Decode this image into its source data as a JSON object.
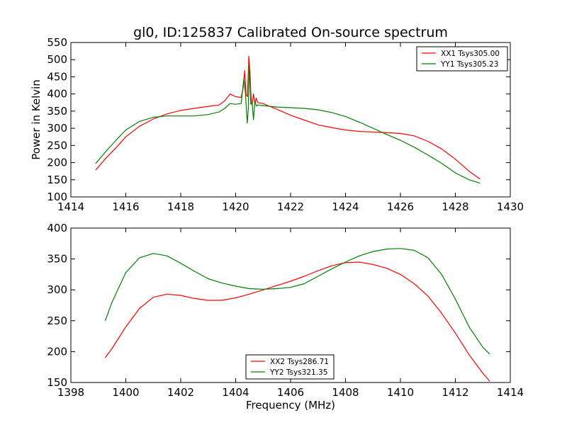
{
  "figure_title": "gl0, ID:125837 Calibrated On-source spectrum",
  "chart_data": [
    {
      "type": "line",
      "title": "gl0, ID:125837 Calibrated On-source spectrum",
      "xlabel": "",
      "ylabel": "Power in Kelvin",
      "xlim": [
        1414,
        1430
      ],
      "ylim": [
        100,
        550
      ],
      "xticks": [
        1414,
        1416,
        1418,
        1420,
        1422,
        1424,
        1426,
        1428,
        1430
      ],
      "yticks": [
        100,
        150,
        200,
        250,
        300,
        350,
        400,
        450,
        500,
        550
      ],
      "grid": false,
      "legend_position": "top-right",
      "series": [
        {
          "name": "XX1 Tsys305.00",
          "color": "#ff0000",
          "x": [
            1414.9,
            1415.3,
            1415.7,
            1416.0,
            1416.5,
            1417.0,
            1417.5,
            1418.0,
            1418.5,
            1419.0,
            1419.4,
            1419.6,
            1419.8,
            1420.0,
            1420.2,
            1420.28,
            1420.33,
            1420.38,
            1420.43,
            1420.48,
            1420.52,
            1420.56,
            1420.6,
            1420.65,
            1420.7,
            1420.75,
            1420.8,
            1421.0,
            1421.3,
            1421.6,
            1422.0,
            1422.5,
            1423.0,
            1423.5,
            1424.0,
            1424.5,
            1425.0,
            1425.5,
            1426.0,
            1426.5,
            1427.0,
            1427.5,
            1428.0,
            1428.5,
            1428.9
          ],
          "y": [
            178,
            215,
            248,
            275,
            306,
            327,
            342,
            352,
            358,
            364,
            368,
            380,
            400,
            392,
            390,
            420,
            468,
            398,
            392,
            510,
            470,
            390,
            368,
            400,
            372,
            388,
            375,
            372,
            362,
            352,
            338,
            324,
            310,
            302,
            295,
            291,
            289,
            287,
            285,
            278,
            262,
            240,
            210,
            175,
            152
          ]
        },
        {
          "name": "YY1 Tsys305.23",
          "color": "#008000",
          "x": [
            1414.9,
            1415.3,
            1415.7,
            1416.0,
            1416.5,
            1417.0,
            1417.5,
            1418.0,
            1418.5,
            1419.0,
            1419.4,
            1419.6,
            1419.8,
            1420.0,
            1420.2,
            1420.3,
            1420.36,
            1420.42,
            1420.46,
            1420.5,
            1420.55,
            1420.6,
            1420.65,
            1420.7,
            1420.75,
            1420.8,
            1421.0,
            1421.5,
            1422.0,
            1422.5,
            1423.0,
            1423.5,
            1424.0,
            1424.5,
            1425.0,
            1425.5,
            1426.0,
            1426.5,
            1427.0,
            1427.5,
            1428.0,
            1428.5,
            1428.9
          ],
          "y": [
            197,
            235,
            270,
            295,
            320,
            332,
            336,
            336,
            336,
            340,
            348,
            358,
            372,
            370,
            372,
            445,
            400,
            315,
            355,
            485,
            370,
            375,
            325,
            380,
            365,
            368,
            366,
            362,
            360,
            358,
            354,
            346,
            334,
            318,
            300,
            282,
            265,
            245,
            222,
            198,
            170,
            150,
            140
          ]
        }
      ]
    },
    {
      "type": "line",
      "title": "",
      "xlabel": "Frequency (MHz)",
      "ylabel": "",
      "xlim": [
        1398,
        1414
      ],
      "ylim": [
        150,
        400
      ],
      "xticks": [
        1398,
        1400,
        1402,
        1404,
        1406,
        1408,
        1410,
        1412,
        1414
      ],
      "yticks": [
        150,
        200,
        250,
        300,
        350,
        400
      ],
      "grid": false,
      "legend_position": "bottom-center",
      "series": [
        {
          "name": "XX2 Tsys286.71",
          "color": "#ff0000",
          "x": [
            1399.25,
            1399.5,
            1400.0,
            1400.5,
            1401.0,
            1401.5,
            1402.0,
            1402.5,
            1403.0,
            1403.5,
            1404.0,
            1404.5,
            1405.0,
            1405.5,
            1406.0,
            1406.5,
            1407.0,
            1407.5,
            1408.0,
            1408.5,
            1409.0,
            1409.5,
            1410.0,
            1410.5,
            1411.0,
            1411.5,
            1412.0,
            1412.5,
            1413.0,
            1413.25
          ],
          "y": [
            190,
            205,
            240,
            270,
            288,
            293,
            291,
            286,
            283,
            283,
            287,
            293,
            300,
            307,
            314,
            322,
            331,
            339,
            344,
            345,
            341,
            335,
            325,
            310,
            290,
            262,
            230,
            195,
            165,
            152
          ]
        },
        {
          "name": "YY2 Tsys321.35",
          "color": "#008000",
          "x": [
            1399.25,
            1399.5,
            1400.0,
            1400.5,
            1401.0,
            1401.5,
            1402.0,
            1402.5,
            1403.0,
            1403.5,
            1404.0,
            1404.5,
            1405.0,
            1405.5,
            1406.0,
            1406.5,
            1407.0,
            1407.5,
            1408.0,
            1408.5,
            1409.0,
            1409.5,
            1410.0,
            1410.5,
            1411.0,
            1411.5,
            1412.0,
            1412.5,
            1413.0,
            1413.25
          ],
          "y": [
            250,
            280,
            328,
            352,
            359,
            355,
            343,
            330,
            318,
            311,
            306,
            302,
            301,
            302,
            304,
            310,
            322,
            334,
            345,
            355,
            362,
            366,
            367,
            364,
            352,
            325,
            285,
            240,
            207,
            196
          ]
        }
      ]
    }
  ]
}
